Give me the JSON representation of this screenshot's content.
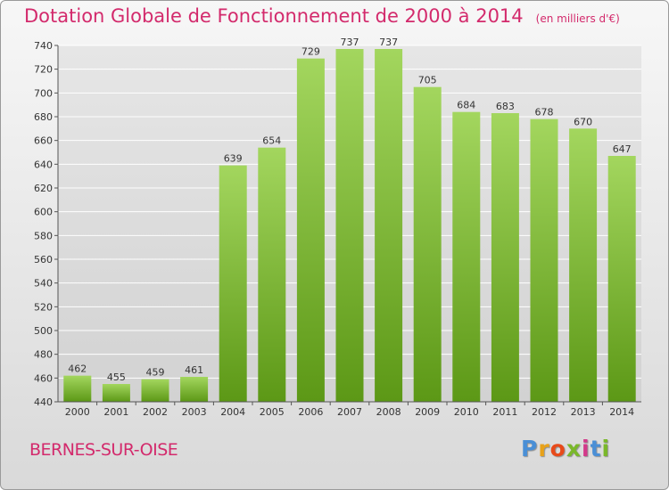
{
  "title": "Dotation Globale de Fonctionnement de 2000 à 2014",
  "unit": "(en milliers d'€)",
  "commune": "BERNES-SUR-OISE",
  "logo": {
    "letters": [
      "P",
      "r",
      "o",
      "x",
      "i",
      "t",
      "i"
    ],
    "colors": [
      "#4a8fd6",
      "#e8a21a",
      "#e84a1a",
      "#7ab82a",
      "#d33a8a",
      "#4a8fd6",
      "#7ab82a"
    ]
  },
  "colors": {
    "title": "#d32a6c",
    "bar_top": "#9fd45a",
    "bar_bottom": "#5e9a18",
    "grid": "#ffffff"
  },
  "chart_data": {
    "type": "bar",
    "title": "Dotation Globale de Fonctionnement de 2000 à 2014",
    "subtitle": "(en milliers d'€)",
    "categories": [
      "2000",
      "2001",
      "2002",
      "2003",
      "2004",
      "2005",
      "2006",
      "2007",
      "2008",
      "2009",
      "2010",
      "2011",
      "2012",
      "2013",
      "2014"
    ],
    "values": [
      462,
      455,
      459,
      461,
      639,
      654,
      729,
      737,
      737,
      705,
      684,
      683,
      678,
      670,
      647
    ],
    "ylim": [
      440,
      740
    ],
    "yticks": [
      440,
      460,
      480,
      500,
      520,
      540,
      560,
      580,
      600,
      620,
      640,
      660,
      680,
      700,
      720,
      740
    ],
    "grid": true,
    "xlabel": "",
    "ylabel": ""
  }
}
